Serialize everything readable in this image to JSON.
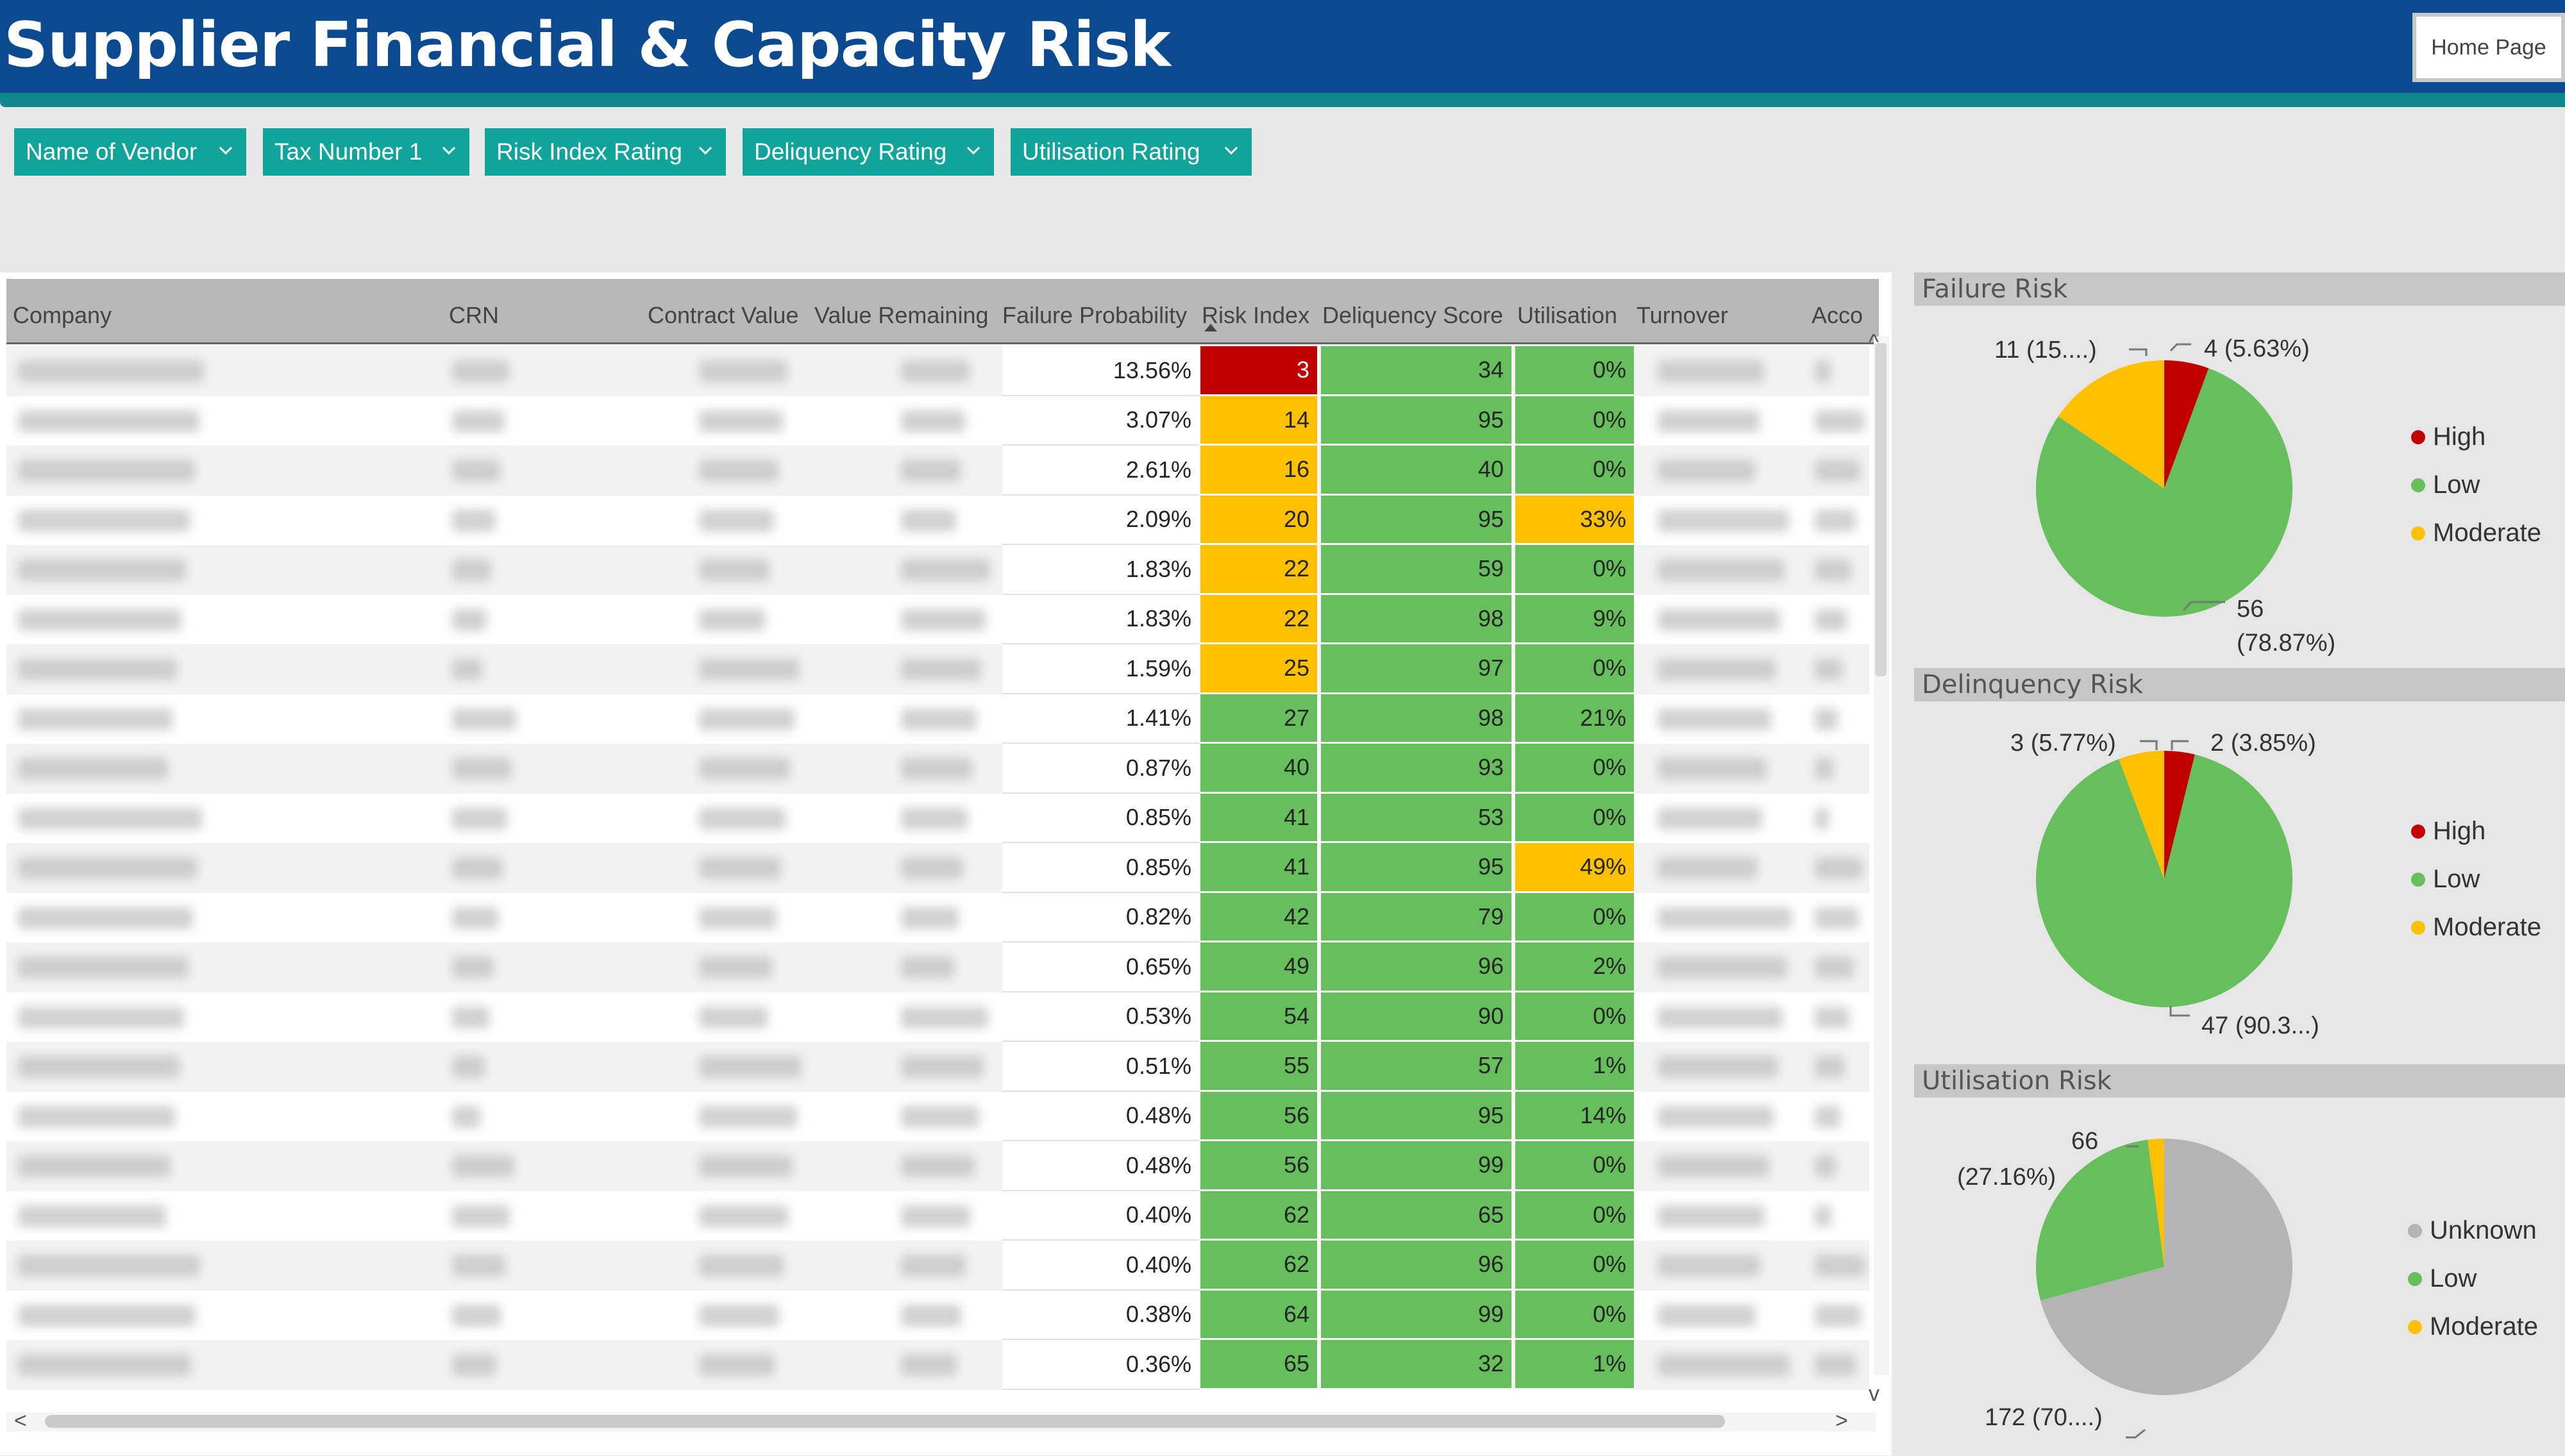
{
  "header": {
    "title": "Supplier Financial & Capacity Risk",
    "home_button": "Home Page"
  },
  "filters": [
    "Name of Vendor",
    "Tax Number 1",
    "Risk Index Rating",
    "Deliquency Rating",
    "Utilisation Rating"
  ],
  "table": {
    "columns": [
      "Company",
      "CRN",
      "Contract Value",
      "Value Remaining",
      "Failure Probability",
      "Risk Index",
      "Deliquency Score",
      "Utilisation",
      "Turnover",
      "Acco"
    ],
    "rows": [
      {
        "fp": "13.56%",
        "ri": "3",
        "ri_rating": "high",
        "ds": "34",
        "ut": "0%",
        "ut_rating": "low"
      },
      {
        "fp": "3.07%",
        "ri": "14",
        "ri_rating": "moderate",
        "ds": "95",
        "ut": "0%",
        "ut_rating": "low"
      },
      {
        "fp": "2.61%",
        "ri": "16",
        "ri_rating": "moderate",
        "ds": "40",
        "ut": "0%",
        "ut_rating": "low"
      },
      {
        "fp": "2.09%",
        "ri": "20",
        "ri_rating": "moderate",
        "ds": "95",
        "ut": "33%",
        "ut_rating": "moderate"
      },
      {
        "fp": "1.83%",
        "ri": "22",
        "ri_rating": "moderate",
        "ds": "59",
        "ut": "0%",
        "ut_rating": "low"
      },
      {
        "fp": "1.83%",
        "ri": "22",
        "ri_rating": "moderate",
        "ds": "98",
        "ut": "9%",
        "ut_rating": "low"
      },
      {
        "fp": "1.59%",
        "ri": "25",
        "ri_rating": "moderate",
        "ds": "97",
        "ut": "0%",
        "ut_rating": "low"
      },
      {
        "fp": "1.41%",
        "ri": "27",
        "ri_rating": "low",
        "ds": "98",
        "ut": "21%",
        "ut_rating": "low"
      },
      {
        "fp": "0.87%",
        "ri": "40",
        "ri_rating": "low",
        "ds": "93",
        "ut": "0%",
        "ut_rating": "low"
      },
      {
        "fp": "0.85%",
        "ri": "41",
        "ri_rating": "low",
        "ds": "53",
        "ut": "0%",
        "ut_rating": "low"
      },
      {
        "fp": "0.85%",
        "ri": "41",
        "ri_rating": "low",
        "ds": "95",
        "ut": "49%",
        "ut_rating": "moderate"
      },
      {
        "fp": "0.82%",
        "ri": "42",
        "ri_rating": "low",
        "ds": "79",
        "ut": "0%",
        "ut_rating": "low"
      },
      {
        "fp": "0.65%",
        "ri": "49",
        "ri_rating": "low",
        "ds": "96",
        "ut": "2%",
        "ut_rating": "low"
      },
      {
        "fp": "0.53%",
        "ri": "54",
        "ri_rating": "low",
        "ds": "90",
        "ut": "0%",
        "ut_rating": "low"
      },
      {
        "fp": "0.51%",
        "ri": "55",
        "ri_rating": "low",
        "ds": "57",
        "ut": "1%",
        "ut_rating": "low"
      },
      {
        "fp": "0.48%",
        "ri": "56",
        "ri_rating": "low",
        "ds": "95",
        "ut": "14%",
        "ut_rating": "low"
      },
      {
        "fp": "0.48%",
        "ri": "56",
        "ri_rating": "low",
        "ds": "99",
        "ut": "0%",
        "ut_rating": "low"
      },
      {
        "fp": "0.40%",
        "ri": "62",
        "ri_rating": "low",
        "ds": "65",
        "ut": "0%",
        "ut_rating": "low"
      },
      {
        "fp": "0.40%",
        "ri": "62",
        "ri_rating": "low",
        "ds": "96",
        "ut": "0%",
        "ut_rating": "low"
      },
      {
        "fp": "0.38%",
        "ri": "64",
        "ri_rating": "low",
        "ds": "99",
        "ut": "0%",
        "ut_rating": "low"
      },
      {
        "fp": "0.36%",
        "ri": "65",
        "ri_rating": "low",
        "ds": "32",
        "ut": "1%",
        "ut_rating": "low"
      }
    ]
  },
  "colors": {
    "high": "#c00000",
    "moderate": "#ffc000",
    "low": "#66bf5c",
    "unknown": "#b4b4b4",
    "header_bg": "#0b4a91",
    "accent": "#11a49a"
  },
  "chart_data": [
    {
      "type": "pie",
      "title": "Failure Risk",
      "legend": [
        "High",
        "Low",
        "Moderate"
      ],
      "slices": [
        {
          "name": "High",
          "value": 4,
          "label": "4 (5.63%)",
          "color": "#c00000"
        },
        {
          "name": "Low",
          "value": 56,
          "label": "56",
          "label2": "(78.87%)",
          "color": "#66bf5c"
        },
        {
          "name": "Moderate",
          "value": 11,
          "label": "11 (15....)",
          "color": "#ffc000"
        }
      ]
    },
    {
      "type": "pie",
      "title": "Delinquency Risk",
      "legend": [
        "High",
        "Low",
        "Moderate"
      ],
      "slices": [
        {
          "name": "High",
          "value": 2,
          "label": "2 (3.85%)",
          "color": "#c00000"
        },
        {
          "name": "Low",
          "value": 47,
          "label": "47 (90.3...)",
          "color": "#66bf5c"
        },
        {
          "name": "Moderate",
          "value": 3,
          "label": "3 (5.77%)",
          "color": "#ffc000"
        }
      ]
    },
    {
      "type": "pie",
      "title": "Utilisation Risk",
      "legend": [
        "Unknown",
        "Low",
        "Moderate"
      ],
      "slices": [
        {
          "name": "Unknown",
          "value": 172,
          "label": "172 (70....)",
          "color": "#b4b4b4"
        },
        {
          "name": "Low",
          "value": 66,
          "label": "66",
          "label2": "(27.16%)",
          "color": "#66bf5c"
        },
        {
          "name": "Moderate",
          "value": 5,
          "label": "",
          "color": "#ffc000"
        }
      ]
    }
  ]
}
